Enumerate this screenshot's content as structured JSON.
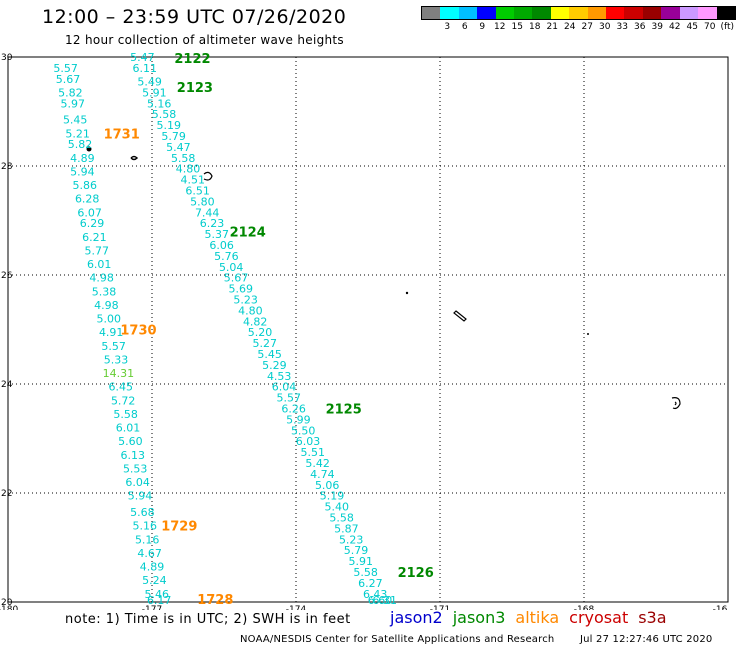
{
  "header": {
    "title": "12:00 – 23:59 UTC 07/26/2020",
    "subtitle": "12 hour collection of altimeter wave heights"
  },
  "color_scale": {
    "colors": [
      "#808080",
      "#00ffff",
      "#00bfff",
      "#0000ff",
      "#00cc00",
      "#00aa00",
      "#008800",
      "#ffff00",
      "#ffcc00",
      "#ff9900",
      "#ff0000",
      "#cc0000",
      "#990000",
      "#990099",
      "#cc99ff",
      "#ff99ff",
      "#000000"
    ],
    "labels": [
      "",
      "3",
      "6",
      "9",
      "12",
      "15",
      "18",
      "21",
      "24",
      "27",
      "30",
      "33",
      "36",
      "39",
      "42",
      "45",
      "70"
    ],
    "unit": "(ft)"
  },
  "chart_data": {
    "type": "scatter",
    "x_ticks": [
      "-180",
      "-177",
      "-174",
      "-171",
      "-168",
      "-16"
    ],
    "y_ticks": [
      "30",
      "28",
      "26",
      "24",
      "22",
      "20"
    ],
    "xlim": [
      -180,
      -165
    ],
    "ylim": [
      20,
      30
    ],
    "grid": true,
    "obs_color": "#00cccc",
    "passes": [
      {
        "label": "1731",
        "satellite": "altika",
        "label_color": "#ff8800",
        "label_lat": 28.6,
        "points": [
          {
            "lon": -178.8,
            "lat": 29.8,
            "v": "5.57"
          },
          {
            "lon": -178.75,
            "lat": 29.6,
            "v": "5.67"
          },
          {
            "lon": -178.7,
            "lat": 29.35,
            "v": "5.82"
          },
          {
            "lon": -178.65,
            "lat": 29.15,
            "v": "5.97"
          },
          {
            "lon": -178.6,
            "lat": 28.85,
            "v": "5.45"
          },
          {
            "lon": -178.55,
            "lat": 28.6,
            "v": "5.21"
          },
          {
            "lon": -178.5,
            "lat": 28.4,
            "v": "5.82"
          },
          {
            "lon": -178.45,
            "lat": 28.15,
            "v": "4.89"
          }
        ]
      },
      {
        "label": "1730",
        "satellite": "altika",
        "label_color": "#ff8800",
        "label_lat": 25.0,
        "points": [
          {
            "lon": -178.45,
            "lat": 27.9,
            "v": "5.94"
          },
          {
            "lon": -178.4,
            "lat": 27.65,
            "v": "5.86"
          },
          {
            "lon": -178.35,
            "lat": 27.4,
            "v": "6.28"
          },
          {
            "lon": -178.3,
            "lat": 27.15,
            "v": "6.07"
          },
          {
            "lon": -178.25,
            "lat": 26.95,
            "v": "6.29"
          },
          {
            "lon": -178.2,
            "lat": 26.7,
            "v": "6.21"
          },
          {
            "lon": -178.15,
            "lat": 26.45,
            "v": "5.77"
          },
          {
            "lon": -178.1,
            "lat": 26.2,
            "v": "6.01"
          },
          {
            "lon": -178.05,
            "lat": 25.95,
            "v": "4.98"
          },
          {
            "lon": -178.0,
            "lat": 25.7,
            "v": "5.38"
          },
          {
            "lon": -177.95,
            "lat": 25.45,
            "v": "4.98"
          },
          {
            "lon": -177.9,
            "lat": 25.2,
            "v": "5.00"
          },
          {
            "lon": -177.85,
            "lat": 24.95,
            "v": "4.91"
          },
          {
            "lon": -177.8,
            "lat": 24.7,
            "v": "5.57"
          },
          {
            "lon": -177.75,
            "lat": 24.45,
            "v": "5.33"
          },
          {
            "lon": -177.7,
            "lat": 24.2,
            "v": "14.31",
            "highlight": true
          },
          {
            "lon": -177.65,
            "lat": 23.95,
            "v": "6.45"
          }
        ]
      },
      {
        "label": "1729",
        "satellite": "altika",
        "label_color": "#ff8800",
        "label_lat": 21.4,
        "points": [
          {
            "lon": -177.6,
            "lat": 23.7,
            "v": "5.72"
          },
          {
            "lon": -177.55,
            "lat": 23.45,
            "v": "5.58"
          },
          {
            "lon": -177.5,
            "lat": 23.2,
            "v": "6.01"
          },
          {
            "lon": -177.45,
            "lat": 22.95,
            "v": "5.60"
          },
          {
            "lon": -177.4,
            "lat": 22.7,
            "v": "6.13"
          },
          {
            "lon": -177.35,
            "lat": 22.45,
            "v": "5.53"
          },
          {
            "lon": -177.3,
            "lat": 22.2,
            "v": "6.04"
          },
          {
            "lon": -177.25,
            "lat": 21.95,
            "v": "5.94"
          },
          {
            "lon": -177.2,
            "lat": 21.65,
            "v": "5.68"
          },
          {
            "lon": -177.15,
            "lat": 21.4,
            "v": "5.16"
          },
          {
            "lon": -177.1,
            "lat": 21.15,
            "v": "5.16"
          },
          {
            "lon": -177.05,
            "lat": 20.9,
            "v": "4.67"
          },
          {
            "lon": -177.0,
            "lat": 20.65,
            "v": "4.89"
          },
          {
            "lon": -176.95,
            "lat": 20.4,
            "v": "5.24"
          },
          {
            "lon": -176.9,
            "lat": 20.15,
            "v": "5.46"
          }
        ]
      },
      {
        "label": "1728",
        "satellite": "altika",
        "label_color": "#ff8800",
        "label_lat": 19.95,
        "points": [
          {
            "lon": -176.85,
            "lat": 19.95,
            "v": "6.17"
          }
        ]
      },
      {
        "label": "2122",
        "satellite": "jason3",
        "label_color": "#008800",
        "label_lat": 30.0,
        "points": [
          {
            "lon": -177.2,
            "lat": 30.0,
            "v": "5.47"
          }
        ]
      },
      {
        "label": "2123",
        "satellite": "jason3",
        "label_color": "#008800",
        "label_lat": 29.45,
        "points": [
          {
            "lon": -177.15,
            "lat": 29.8,
            "v": "6.11"
          },
          {
            "lon": -177.05,
            "lat": 29.55,
            "v": "5.49"
          },
          {
            "lon": -176.95,
            "lat": 29.35,
            "v": "5.91"
          },
          {
            "lon": -176.85,
            "lat": 29.15,
            "v": "5.16"
          },
          {
            "lon": -176.75,
            "lat": 28.95,
            "v": "5.58"
          },
          {
            "lon": -176.65,
            "lat": 28.75,
            "v": "5.19"
          },
          {
            "lon": -176.55,
            "lat": 28.55,
            "v": "5.79"
          },
          {
            "lon": -176.45,
            "lat": 28.35,
            "v": "5.47"
          },
          {
            "lon": -176.35,
            "lat": 28.15,
            "v": "5.58"
          },
          {
            "lon": -176.25,
            "lat": 27.95,
            "v": "4.80"
          },
          {
            "lon": -176.15,
            "lat": 27.75,
            "v": "4.51"
          }
        ]
      },
      {
        "label": "2124",
        "satellite": "jason3",
        "label_color": "#008800",
        "label_lat": 26.8,
        "points": [
          {
            "lon": -176.05,
            "lat": 27.55,
            "v": "6.51"
          },
          {
            "lon": -175.95,
            "lat": 27.35,
            "v": "5.80"
          },
          {
            "lon": -175.85,
            "lat": 27.15,
            "v": "7.44"
          },
          {
            "lon": -175.75,
            "lat": 26.95,
            "v": "6.23"
          },
          {
            "lon": -175.65,
            "lat": 26.75,
            "v": "5.37"
          },
          {
            "lon": -175.55,
            "lat": 26.55,
            "v": "6.06"
          },
          {
            "lon": -175.45,
            "lat": 26.35,
            "v": "5.76"
          },
          {
            "lon": -175.35,
            "lat": 26.15,
            "v": "5.04"
          },
          {
            "lon": -175.25,
            "lat": 25.95,
            "v": "5.67"
          },
          {
            "lon": -175.15,
            "lat": 25.75,
            "v": "5.69"
          },
          {
            "lon": -175.05,
            "lat": 25.55,
            "v": "5.23"
          },
          {
            "lon": -174.95,
            "lat": 25.35,
            "v": "4.80"
          },
          {
            "lon": -174.85,
            "lat": 25.15,
            "v": "4.82"
          },
          {
            "lon": -174.75,
            "lat": 24.95,
            "v": "5.20"
          },
          {
            "lon": -174.65,
            "lat": 24.75,
            "v": "5.27"
          },
          {
            "lon": -174.55,
            "lat": 24.55,
            "v": "5.45"
          },
          {
            "lon": -174.45,
            "lat": 24.35,
            "v": "5.29"
          },
          {
            "lon": -174.35,
            "lat": 24.15,
            "v": "4.53"
          },
          {
            "lon": -174.25,
            "lat": 23.95,
            "v": "6.04"
          },
          {
            "lon": -174.15,
            "lat": 23.75,
            "v": "5.57"
          }
        ]
      },
      {
        "label": "2125",
        "satellite": "jason3",
        "label_color": "#008800",
        "label_lat": 23.55,
        "points": [
          {
            "lon": -174.05,
            "lat": 23.55,
            "v": "6.26"
          },
          {
            "lon": -173.95,
            "lat": 23.35,
            "v": "5.99"
          },
          {
            "lon": -173.85,
            "lat": 23.15,
            "v": "5.50"
          },
          {
            "lon": -173.75,
            "lat": 22.95,
            "v": "6.03"
          },
          {
            "lon": -173.65,
            "lat": 22.75,
            "v": "5.51"
          },
          {
            "lon": -173.55,
            "lat": 22.55,
            "v": "5.42"
          },
          {
            "lon": -173.45,
            "lat": 22.35,
            "v": "4.74"
          },
          {
            "lon": -173.35,
            "lat": 22.15,
            "v": "5.06"
          },
          {
            "lon": -173.25,
            "lat": 21.95,
            "v": "5.19"
          },
          {
            "lon": -173.15,
            "lat": 21.75,
            "v": "5.40"
          },
          {
            "lon": -173.05,
            "lat": 21.55,
            "v": "5.58"
          },
          {
            "lon": -172.95,
            "lat": 21.35,
            "v": "5.87"
          },
          {
            "lon": -172.85,
            "lat": 21.15,
            "v": "5.23"
          },
          {
            "lon": -172.75,
            "lat": 20.95,
            "v": "5.79"
          },
          {
            "lon": -172.65,
            "lat": 20.75,
            "v": "5.91"
          }
        ]
      },
      {
        "label": "2126",
        "satellite": "jason3",
        "label_color": "#008800",
        "label_lat": 20.55,
        "points": [
          {
            "lon": -172.55,
            "lat": 20.55,
            "v": "5.58"
          },
          {
            "lon": -172.45,
            "lat": 20.35,
            "v": "6.27"
          },
          {
            "lon": -172.35,
            "lat": 20.15,
            "v": "6.43"
          },
          {
            "lon": -172.25,
            "lat": 19.95,
            "v": "6.60"
          },
          {
            "lon": -172.15,
            "lat": 19.75,
            "v": "6.31"
          }
        ]
      }
    ]
  },
  "footer": {
    "note": "note: 1) Time is in UTC; 2) SWH is in feet",
    "satellites": [
      {
        "name": "jason2",
        "color": "#0000cc"
      },
      {
        "name": "jason3",
        "color": "#008800"
      },
      {
        "name": "altika",
        "color": "#ff8800"
      },
      {
        "name": "cryosat",
        "color": "#cc0000"
      },
      {
        "name": "s3a",
        "color": "#990000"
      }
    ],
    "credit": "NOAA/NESDIS Center for Satellite Applications and Research",
    "timestamp": "Jul 27 12:27:46 UTC 2020"
  }
}
